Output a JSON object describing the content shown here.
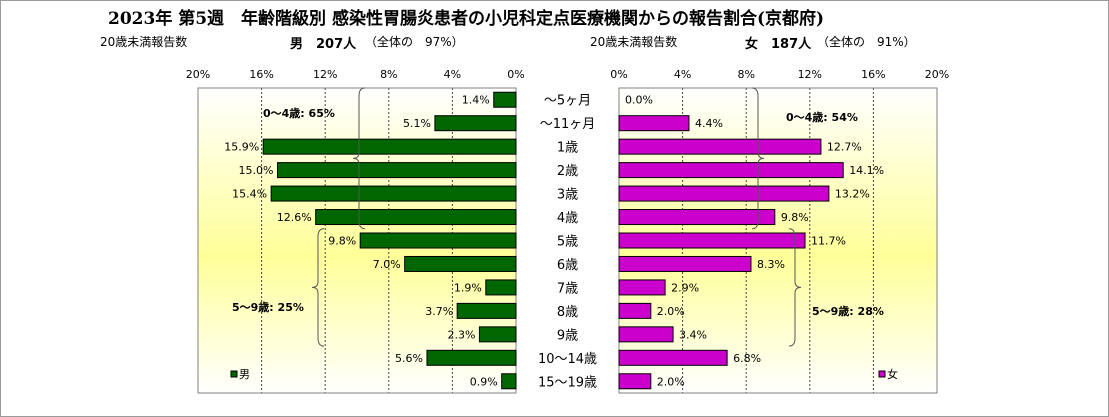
{
  "header": {
    "title": "2023年 第5週　年齢階級別 感染性胃腸炎患者の小児科定点医療機関からの報告割合(京都府)",
    "left_count_label": "20歳未満報告数",
    "left_summary": "男　207人",
    "left_share": "（全体の　97%）",
    "right_count_label": "20歳未満報告数",
    "right_summary": "女　187人",
    "right_share": "（全体の　91%）"
  },
  "chart_data": {
    "type": "bar",
    "orientation": "horizontal-butterfly",
    "categories": [
      "～5ヶ月",
      "～11ヶ月",
      "1歳",
      "2歳",
      "3歳",
      "4歳",
      "5歳",
      "6歳",
      "7歳",
      "8歳",
      "9歳",
      "10～14歳",
      "15～19歳"
    ],
    "series": [
      {
        "name": "男",
        "color": "#006600",
        "values": [
          1.4,
          5.1,
          15.9,
          15.0,
          15.4,
          12.6,
          9.8,
          7.0,
          1.9,
          3.7,
          2.3,
          5.6,
          0.9
        ],
        "labels": [
          "1.4%",
          "5.1%",
          "15.9%",
          "15.0%",
          "15.4%",
          "12.6%",
          "9.8%",
          "7.0%",
          "1.9%",
          "3.7%",
          "2.3%",
          "5.6%",
          "0.9%"
        ]
      },
      {
        "name": "女",
        "color": "#cc00cc",
        "values": [
          0.0,
          4.4,
          12.7,
          14.1,
          13.2,
          9.8,
          11.7,
          8.3,
          2.9,
          2.0,
          3.4,
          6.8,
          2.0
        ],
        "labels": [
          "0.0%",
          "4.4%",
          "12.7%",
          "14.1%",
          "13.2%",
          "9.8%",
          "11.7%",
          "8.3%",
          "2.9%",
          "2.0%",
          "3.4%",
          "6.8%",
          "2.0%"
        ]
      }
    ],
    "xlim": [
      0,
      20
    ],
    "left_ticks": [
      "20%",
      "16%",
      "12%",
      "8%",
      "4%",
      "0%"
    ],
    "right_ticks": [
      "0%",
      "4%",
      "8%",
      "12%",
      "16%",
      "20%"
    ],
    "annotations": {
      "male_0_4": "0～4歳: 65%",
      "male_5_9": "5～9歳: 25%",
      "female_0_4": "0～4歳: 54%",
      "female_5_9": "5～9歳: 28%"
    },
    "legend": {
      "male": "男",
      "female": "女",
      "placement": "bottom-corners"
    },
    "grid": true,
    "background_gradient": [
      "#fffff0",
      "#ffff99"
    ]
  }
}
